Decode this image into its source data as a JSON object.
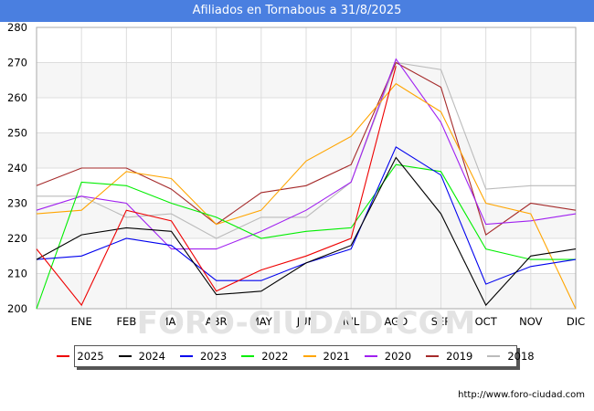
{
  "title": "Afiliados en Tornabous a 31/8/2025",
  "source": "http://www.foro-ciudad.com",
  "watermark": "FORO-CIUDAD.COM",
  "chart_data": {
    "type": "line",
    "title": "Afiliados en Tornabous a 31/8/2025",
    "categories": [
      "",
      "ENE",
      "FEB",
      "MAR",
      "ABR",
      "MAY",
      "JUN",
      "JUL",
      "AGO",
      "SEP",
      "OCT",
      "NOV",
      "DIC"
    ],
    "ylim": [
      200,
      280
    ],
    "yticks": [
      200,
      210,
      220,
      230,
      240,
      250,
      260,
      270,
      280
    ],
    "grid": true,
    "legend_position": "bottom",
    "series": [
      {
        "name": "2025",
        "color": "#ee0000",
        "values": [
          217,
          201,
          228,
          225,
          205,
          211,
          215,
          220,
          269,
          null,
          null,
          null,
          null
        ]
      },
      {
        "name": "2024",
        "color": "#000000",
        "values": [
          214,
          221,
          223,
          222,
          204,
          205,
          213,
          218,
          243,
          227,
          201,
          215,
          217
        ]
      },
      {
        "name": "2023",
        "color": "#0000ee",
        "values": [
          214,
          215,
          220,
          218,
          208,
          208,
          213,
          217,
          246,
          238,
          207,
          212,
          214
        ]
      },
      {
        "name": "2022",
        "color": "#00ee00",
        "values": [
          200,
          236,
          235,
          230,
          226,
          220,
          222,
          223,
          241,
          239,
          217,
          214,
          214
        ]
      },
      {
        "name": "2021",
        "color": "#ffa500",
        "values": [
          227,
          228,
          239,
          237,
          224,
          228,
          242,
          249,
          264,
          256,
          230,
          227,
          200
        ]
      },
      {
        "name": "2020",
        "color": "#a020f0",
        "values": [
          228,
          232,
          230,
          217,
          217,
          222,
          228,
          236,
          271,
          253,
          224,
          225,
          227
        ]
      },
      {
        "name": "2019",
        "color": "#a52a2a",
        "values": [
          235,
          240,
          240,
          234,
          224,
          233,
          235,
          241,
          270,
          263,
          221,
          230,
          228
        ]
      },
      {
        "name": "2018",
        "color": "#bbbbbb",
        "values": [
          232,
          232,
          226,
          227,
          220,
          226,
          226,
          236,
          270,
          268,
          234,
          235,
          235
        ]
      }
    ]
  }
}
